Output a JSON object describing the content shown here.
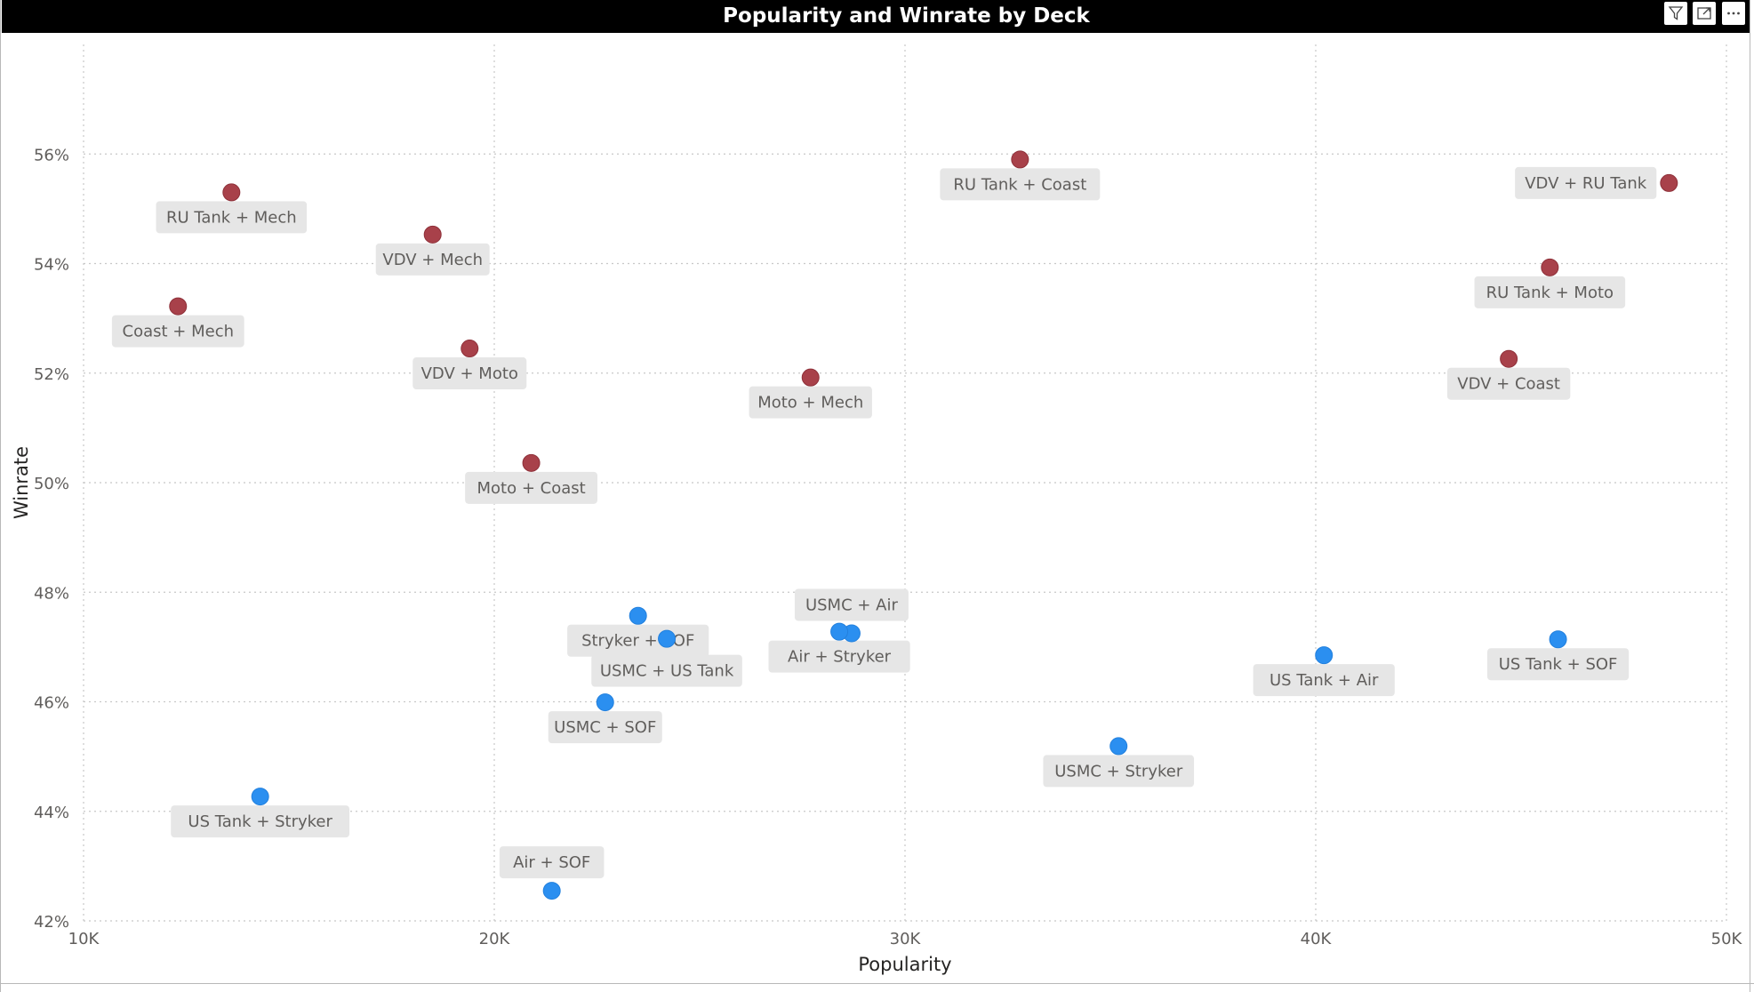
{
  "visual": {
    "title": "Popularity and Winrate by Deck",
    "header_icons": [
      "filter-icon",
      "focus-mode-icon",
      "more-options-icon"
    ]
  },
  "chart_data": {
    "type": "scatter",
    "title": "Popularity and Winrate by Deck",
    "xlabel": "Popularity",
    "ylabel": "Winrate",
    "xlim": [
      10000,
      50000
    ],
    "ylim": [
      0.42,
      0.58
    ],
    "x_ticks": [
      10000,
      20000,
      30000,
      40000,
      50000
    ],
    "x_tick_labels": [
      "10K",
      "20K",
      "30K",
      "40K",
      "50K"
    ],
    "y_ticks": [
      0.42,
      0.44,
      0.46,
      0.48,
      0.5,
      0.52,
      0.54,
      0.56
    ],
    "y_tick_labels": [
      "42%",
      "44%",
      "46%",
      "48%",
      "50%",
      "52%",
      "54%",
      "56%"
    ],
    "grid": true,
    "colors": {
      "red_group": "#a8414a",
      "blue_group": "#2b8ff0"
    },
    "points": [
      {
        "label": "RU Tank + Mech",
        "x": 13600,
        "y": 0.553,
        "group": "red",
        "label_pos": "below"
      },
      {
        "label": "VDV + Mech",
        "x": 18500,
        "y": 0.5453,
        "group": "red",
        "label_pos": "below"
      },
      {
        "label": "Coast + Mech",
        "x": 12300,
        "y": 0.5322,
        "group": "red",
        "label_pos": "below"
      },
      {
        "label": "VDV + Moto",
        "x": 19400,
        "y": 0.5245,
        "group": "red",
        "label_pos": "below"
      },
      {
        "label": "Moto + Mech",
        "x": 27700,
        "y": 0.5192,
        "group": "red",
        "label_pos": "below"
      },
      {
        "label": "Moto + Coast",
        "x": 20900,
        "y": 0.5036,
        "group": "red",
        "label_pos": "below"
      },
      {
        "label": "RU Tank + Coast",
        "x": 32800,
        "y": 0.559,
        "group": "red",
        "label_pos": "below"
      },
      {
        "label": "VDV + RU Tank",
        "x": 48600,
        "y": 0.5547,
        "group": "red",
        "label_pos": "left"
      },
      {
        "label": "RU Tank + Moto",
        "x": 45700,
        "y": 0.5393,
        "group": "red",
        "label_pos": "below"
      },
      {
        "label": "VDV + Coast",
        "x": 44700,
        "y": 0.5226,
        "group": "red",
        "label_pos": "below"
      },
      {
        "label": "Stryker + SOF",
        "x": 23500,
        "y": 0.4757,
        "group": "blue",
        "label_pos": "below"
      },
      {
        "label": "USMC + US Tank",
        "x": 24200,
        "y": 0.4715,
        "group": "blue",
        "label_pos": "below-2"
      },
      {
        "label": "USMC + Air",
        "x": 28700,
        "y": 0.4725,
        "group": "blue",
        "label_pos": "above"
      },
      {
        "label": "Air + Stryker",
        "x": 28400,
        "y": 0.4728,
        "group": "blue",
        "label_pos": "below"
      },
      {
        "label": "USMC + SOF",
        "x": 22700,
        "y": 0.4599,
        "group": "blue",
        "label_pos": "below"
      },
      {
        "label": "US Tank + Stryker",
        "x": 14300,
        "y": 0.4427,
        "group": "blue",
        "label_pos": "below"
      },
      {
        "label": "Air + SOF",
        "x": 21400,
        "y": 0.4255,
        "group": "blue",
        "label_pos": "above"
      },
      {
        "label": "USMC + Stryker",
        "x": 35200,
        "y": 0.4519,
        "group": "blue",
        "label_pos": "below"
      },
      {
        "label": "US Tank + Air",
        "x": 40200,
        "y": 0.4685,
        "group": "blue",
        "label_pos": "below"
      },
      {
        "label": "US Tank + SOF",
        "x": 45900,
        "y": 0.4714,
        "group": "blue",
        "label_pos": "below"
      }
    ]
  }
}
